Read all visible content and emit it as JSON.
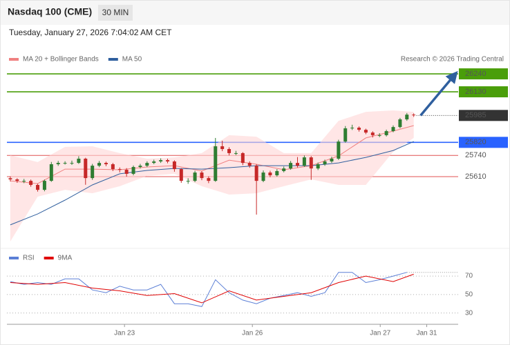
{
  "chart_data": [
    {
      "type": "candlestick",
      "title": "Nasdaq 100 (CME)",
      "timeframe": "30 MIN",
      "subtitle": "Tuesday, January 27, 2026 7:04:02 AM CET",
      "credit": "Research © 2026 Trading Central",
      "x": [
        0,
        1,
        2,
        3,
        4,
        5,
        6,
        7,
        8,
        9,
        10,
        11,
        12,
        13,
        14,
        15,
        16,
        17,
        18,
        19,
        20,
        21,
        22,
        23,
        24,
        25,
        26,
        27,
        28,
        29,
        30,
        31,
        32,
        33,
        34,
        35,
        36,
        37,
        38,
        39,
        40,
        41,
        42,
        43,
        44,
        45,
        46,
        47,
        48,
        49,
        50,
        51,
        52,
        53,
        54,
        55,
        56,
        57,
        58,
        59
      ],
      "open": [
        25600,
        25593,
        25584,
        25584,
        25559,
        25529,
        25584,
        25686,
        25694,
        25694,
        25694,
        25720,
        25601,
        25677,
        25694,
        25686,
        25656,
        25652,
        25627,
        25669,
        25677,
        25694,
        25703,
        25711,
        25703,
        25656,
        25584,
        25584,
        25635,
        25601,
        25584,
        25796,
        25779,
        25754,
        25754,
        25694,
        25677,
        25584,
        25635,
        25618,
        25644,
        25660,
        25694,
        25677,
        25728,
        25660,
        25686,
        25703,
        25720,
        25825,
        25906,
        25910,
        25897,
        25880,
        25864,
        25864,
        25889,
        25914,
        25961,
        25990
      ],
      "high": [
        25612,
        25600,
        25596,
        25592,
        25566,
        25592,
        25700,
        25706,
        25704,
        25708,
        25735,
        25726,
        25688,
        25706,
        25702,
        25694,
        25666,
        25662,
        25678,
        25688,
        25704,
        25714,
        25722,
        25720,
        25710,
        25662,
        25600,
        25646,
        25644,
        25612,
        25847,
        25830,
        25790,
        25768,
        25760,
        25704,
        25686,
        25648,
        25646,
        25656,
        25672,
        25706,
        25730,
        25740,
        25736,
        25696,
        25714,
        25732,
        25836,
        25920,
        25928,
        25918,
        25904,
        25888,
        25876,
        25898,
        25924,
        25970,
        26000,
        25998
      ],
      "low": [
        25580,
        25572,
        25570,
        25548,
        25518,
        25520,
        25578,
        25676,
        25684,
        25682,
        25688,
        25560,
        25590,
        25668,
        25674,
        25644,
        25636,
        25610,
        25618,
        25660,
        25668,
        25686,
        25694,
        25692,
        25640,
        25572,
        25566,
        25576,
        25588,
        25570,
        25578,
        25766,
        25740,
        25742,
        25680,
        25664,
        25377,
        25576,
        25606,
        25610,
        25636,
        25652,
        25666,
        25670,
        25590,
        25650,
        25676,
        25694,
        25712,
        25818,
        25896,
        25886,
        25870,
        25850,
        25852,
        25856,
        25882,
        25906,
        25952,
        25976
      ],
      "close": [
        25593,
        25584,
        25584,
        25559,
        25529,
        25584,
        25686,
        25694,
        25694,
        25694,
        25720,
        25601,
        25677,
        25694,
        25686,
        25656,
        25652,
        25627,
        25669,
        25677,
        25694,
        25703,
        25711,
        25703,
        25656,
        25584,
        25584,
        25635,
        25601,
        25584,
        25796,
        25779,
        25754,
        25754,
        25694,
        25677,
        25584,
        25635,
        25618,
        25644,
        25660,
        25694,
        25677,
        25728,
        25660,
        25686,
        25703,
        25720,
        25825,
        25906,
        25910,
        25897,
        25880,
        25864,
        25864,
        25889,
        25914,
        25961,
        25990,
        25986
      ],
      "up_color": "#2e7d32",
      "down_color": "#c62828",
      "series": [
        {
          "name": "MA 20 + Bollinger Bands",
          "color": "#f08080",
          "band_color": "#ffd6d6",
          "x": [
            0,
            4,
            8,
            12,
            16,
            20,
            24,
            28,
            32,
            36,
            40,
            44,
            48,
            52,
            56,
            59
          ],
          "values": [
            25584,
            25567,
            25656,
            25656,
            25652,
            25669,
            25677,
            25644,
            25711,
            25686,
            25652,
            25677,
            25737,
            25847,
            25889,
            25923
          ],
          "upper": [
            25741,
            25699,
            25792,
            25796,
            25754,
            25720,
            25728,
            25754,
            25864,
            25855,
            25754,
            25754,
            25952,
            26007,
            26016,
            26007
          ],
          "lower": [
            25212,
            25487,
            25529,
            25508,
            25551,
            25614,
            25627,
            25551,
            25500,
            25508,
            25551,
            25593,
            25559,
            25559,
            25762,
            25847
          ]
        },
        {
          "name": "MA 50",
          "color": "#2f5f9e",
          "x": [
            0,
            4,
            8,
            12,
            16,
            20,
            24,
            28,
            32,
            36,
            40,
            44,
            48,
            52,
            56,
            59
          ],
          "values": [
            25314,
            25381,
            25466,
            25559,
            25627,
            25648,
            25660,
            25656,
            25665,
            25677,
            25677,
            25677,
            25694,
            25728,
            25770,
            25825
          ]
        }
      ],
      "levels": [
        {
          "value": 26240,
          "color": "#4a9e0a",
          "box": true
        },
        {
          "value": 26130,
          "color": "#4a9e0a",
          "box": true
        },
        {
          "value": 25985,
          "color": "#333333",
          "box": true,
          "dotted": true
        },
        {
          "value": 25820,
          "color": "#2962ff",
          "box": true
        },
        {
          "value": 25740,
          "color": "#e05050",
          "box": false
        },
        {
          "value": 25610,
          "color": "#e05050",
          "box": false
        }
      ],
      "arrow": {
        "from": [
          60,
          25985
        ],
        "to": [
          65,
          26235
        ],
        "color": "#2f5f9e"
      },
      "xlim": [
        -0.5,
        65.5
      ],
      "ylim": [
        25191,
        26291
      ]
    },
    {
      "type": "line",
      "series": [
        {
          "name": "RSI",
          "color": "#5b7fd6",
          "x": [
            0,
            2,
            4,
            6,
            8,
            10,
            12,
            14,
            16,
            18,
            20,
            22,
            24,
            26,
            28,
            30,
            32,
            34,
            36,
            38,
            40,
            42,
            44,
            46,
            48,
            50,
            52,
            54,
            56,
            58
          ],
          "values": [
            64,
            61,
            63,
            61,
            67,
            67,
            55,
            52,
            59,
            55,
            55,
            61,
            40,
            40,
            37,
            66,
            52,
            44,
            40,
            46,
            49,
            52,
            48,
            52,
            74,
            74,
            63,
            66,
            70,
            74
          ]
        },
        {
          "name": "9MA",
          "color": "#e00000",
          "x": [
            0,
            4,
            8,
            12,
            16,
            20,
            24,
            28,
            32,
            36,
            40,
            44,
            48,
            52,
            56,
            59
          ],
          "values": [
            63,
            61,
            63,
            57,
            54,
            49,
            51,
            41,
            54,
            44,
            48,
            52,
            63,
            70,
            64,
            72
          ]
        }
      ],
      "xlim": [
        -0.5,
        65.5
      ],
      "ylim": [
        23,
        85
      ],
      "yticks": [
        30,
        50,
        70
      ],
      "grid": true,
      "xticks": [
        {
          "value": 16.7,
          "label": "Jan 23"
        },
        {
          "value": 35.4,
          "label": "Jan 26"
        },
        {
          "value": 54.1,
          "label": "Jan 27"
        },
        {
          "value": 60.9,
          "label": "Jan 31"
        }
      ]
    }
  ]
}
